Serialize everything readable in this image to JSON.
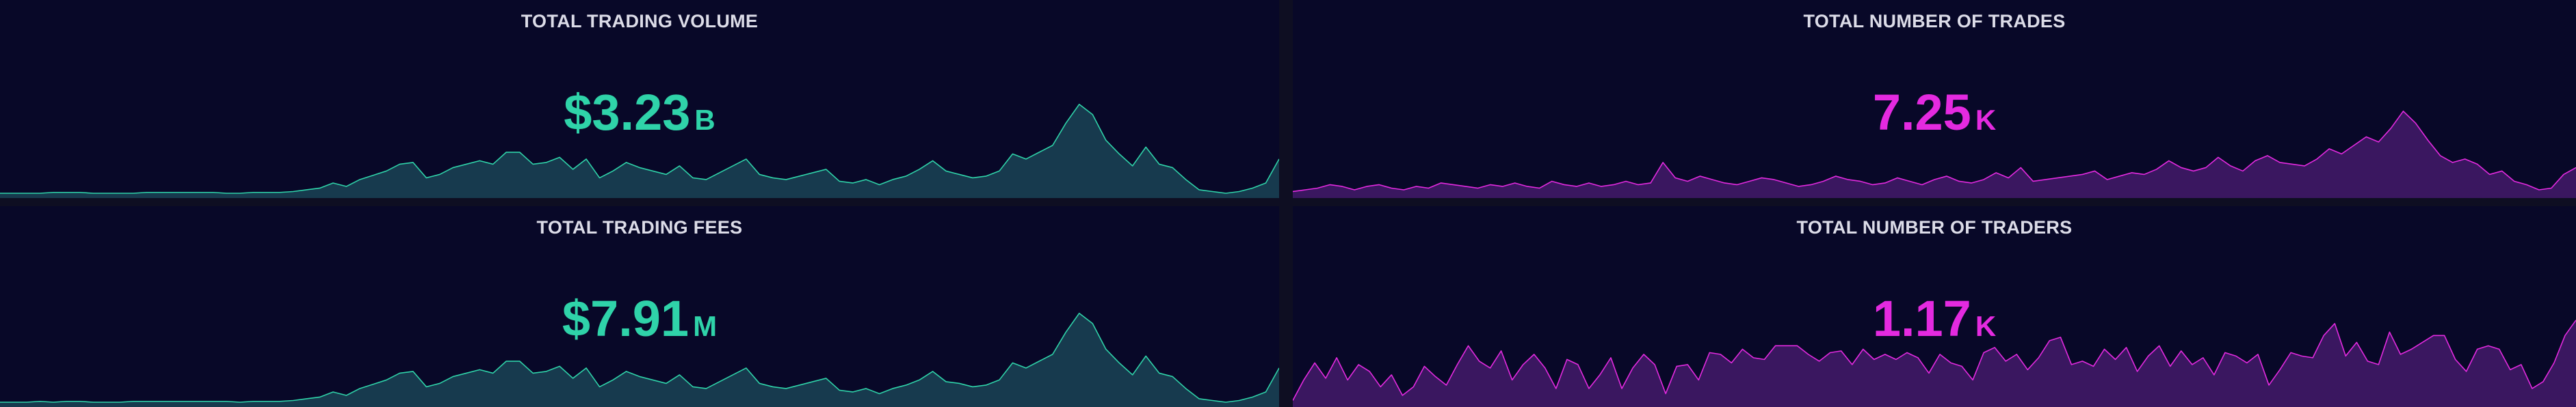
{
  "panels": {
    "volume": {
      "title": "TOTAL TRADING VOLUME",
      "value": "$3.23",
      "unit": "B",
      "color": "#2fd3a9",
      "fill": "#173a4e",
      "series": [
        4,
        4,
        4,
        4,
        5,
        5,
        5,
        4,
        4,
        4,
        4,
        5,
        5,
        5,
        5,
        5,
        5,
        4,
        4,
        5,
        5,
        5,
        6,
        8,
        10,
        16,
        12,
        20,
        25,
        30,
        38,
        40,
        22,
        26,
        34,
        38,
        42,
        38,
        52,
        52,
        38,
        40,
        46,
        32,
        44,
        22,
        30,
        40,
        34,
        30,
        26,
        36,
        22,
        20,
        28,
        36,
        44,
        26,
        22,
        20,
        24,
        28,
        32,
        18,
        16,
        20,
        14,
        20,
        24,
        32,
        42,
        30,
        26,
        22,
        24,
        30,
        50,
        44,
        52,
        60,
        86,
        108,
        96,
        66,
        50,
        36,
        58,
        38,
        34,
        20,
        8,
        6,
        4,
        6,
        10,
        16,
        44
      ]
    },
    "trades": {
      "title": "TOTAL NUMBER OF TRADES",
      "value": "7.25",
      "unit": "K",
      "color": "#e42ae0",
      "fill": "#3a1760",
      "series": [
        6,
        8,
        10,
        14,
        12,
        8,
        12,
        14,
        10,
        8,
        12,
        10,
        16,
        14,
        12,
        10,
        14,
        12,
        16,
        12,
        10,
        18,
        14,
        12,
        16,
        12,
        14,
        18,
        14,
        16,
        40,
        22,
        18,
        24,
        20,
        16,
        14,
        18,
        22,
        20,
        16,
        12,
        14,
        18,
        24,
        20,
        18,
        14,
        16,
        22,
        18,
        14,
        20,
        24,
        18,
        16,
        20,
        28,
        22,
        34,
        18,
        20,
        22,
        24,
        26,
        30,
        20,
        24,
        28,
        26,
        32,
        42,
        34,
        30,
        34,
        46,
        36,
        30,
        42,
        48,
        40,
        38,
        36,
        44,
        56,
        50,
        60,
        70,
        64,
        80,
        100,
        86,
        66,
        48,
        40,
        44,
        38,
        26,
        30,
        18,
        14,
        8,
        10,
        26,
        34
      ]
    },
    "fees": {
      "title": "TOTAL TRADING FEES",
      "value": "$7.91",
      "unit": "M",
      "color": "#2fd3a9",
      "fill": "#173a4e",
      "series": [
        4,
        4,
        4,
        5,
        4,
        5,
        5,
        4,
        4,
        4,
        5,
        5,
        5,
        5,
        5,
        5,
        5,
        5,
        4,
        5,
        5,
        5,
        6,
        8,
        10,
        16,
        12,
        20,
        25,
        30,
        38,
        40,
        22,
        26,
        34,
        38,
        42,
        38,
        52,
        52,
        38,
        40,
        46,
        32,
        44,
        22,
        30,
        40,
        34,
        30,
        26,
        36,
        22,
        20,
        28,
        36,
        44,
        26,
        22,
        20,
        24,
        28,
        32,
        18,
        16,
        20,
        14,
        20,
        24,
        30,
        40,
        28,
        26,
        22,
        24,
        30,
        50,
        44,
        52,
        60,
        86,
        108,
        96,
        66,
        50,
        36,
        58,
        38,
        34,
        20,
        8,
        6,
        4,
        6,
        10,
        16,
        44
      ]
    },
    "traders": {
      "title": "TOTAL NUMBER OF TRADERS",
      "value": "1.17",
      "unit": "K",
      "color": "#e42ae0",
      "fill": "#3a1760",
      "series": [
        6,
        30,
        50,
        32,
        56,
        30,
        48,
        40,
        22,
        36,
        12,
        22,
        46,
        34,
        24,
        48,
        70,
        52,
        44,
        64,
        30,
        48,
        60,
        44,
        20,
        54,
        48,
        20,
        36,
        56,
        20,
        44,
        60,
        48,
        14,
        46,
        48,
        30,
        62,
        60,
        50,
        66,
        56,
        54,
        70,
        70,
        70,
        60,
        52,
        62,
        64,
        48,
        66,
        54,
        60,
        54,
        62,
        56,
        38,
        60,
        50,
        46,
        30,
        62,
        68,
        52,
        60,
        42,
        56,
        76,
        80,
        48,
        52,
        46,
        66,
        54,
        68,
        40,
        58,
        70,
        46,
        64,
        48,
        56,
        36,
        62,
        58,
        50,
        60,
        24,
        42,
        62,
        58,
        56,
        82,
        96,
        58,
        74,
        52,
        48,
        86,
        60,
        66,
        74,
        82,
        82,
        54,
        40,
        66,
        70,
        66,
        42,
        48,
        20,
        28,
        50,
        82,
        100
      ]
    }
  }
}
